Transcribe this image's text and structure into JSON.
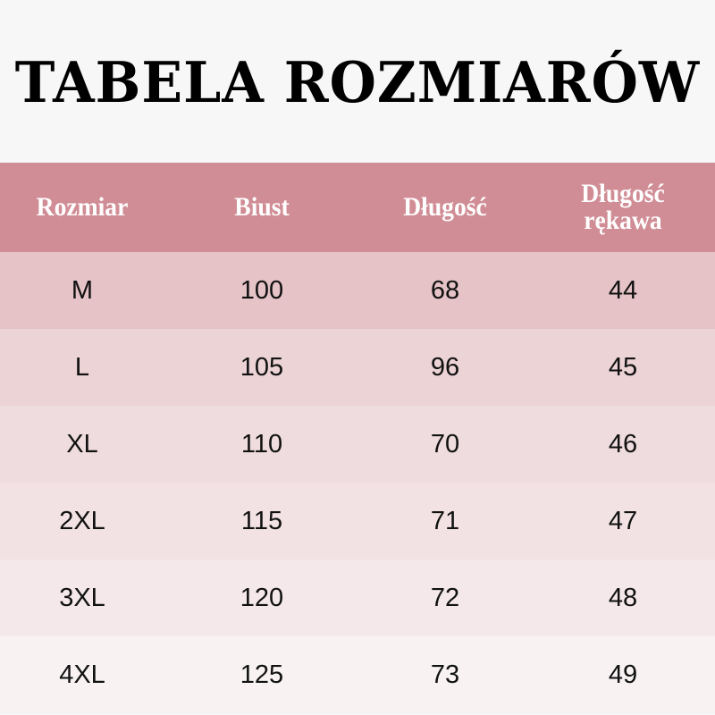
{
  "title": "TABELA ROZMIARÓW",
  "colors": {
    "header_bg": "#d08d95",
    "header_text": "#ffffff",
    "page_bg": "#f7f7f7",
    "row_bgs": [
      "#e5c3c7",
      "#ecd3d6",
      "#efdcdf",
      "#f2e2e4",
      "#f4e8ea",
      "#f8f2f3"
    ]
  },
  "headers": [
    "Rozmiar",
    "Biust",
    "Długość",
    "Długość rękawa"
  ],
  "rows": [
    [
      "M",
      "100",
      "68",
      "44"
    ],
    [
      "L",
      "105",
      "96",
      "45"
    ],
    [
      "XL",
      "110",
      "70",
      "46"
    ],
    [
      "2XL",
      "115",
      "71",
      "47"
    ],
    [
      "3XL",
      "120",
      "72",
      "48"
    ],
    [
      "4XL",
      "125",
      "73",
      "49"
    ]
  ]
}
